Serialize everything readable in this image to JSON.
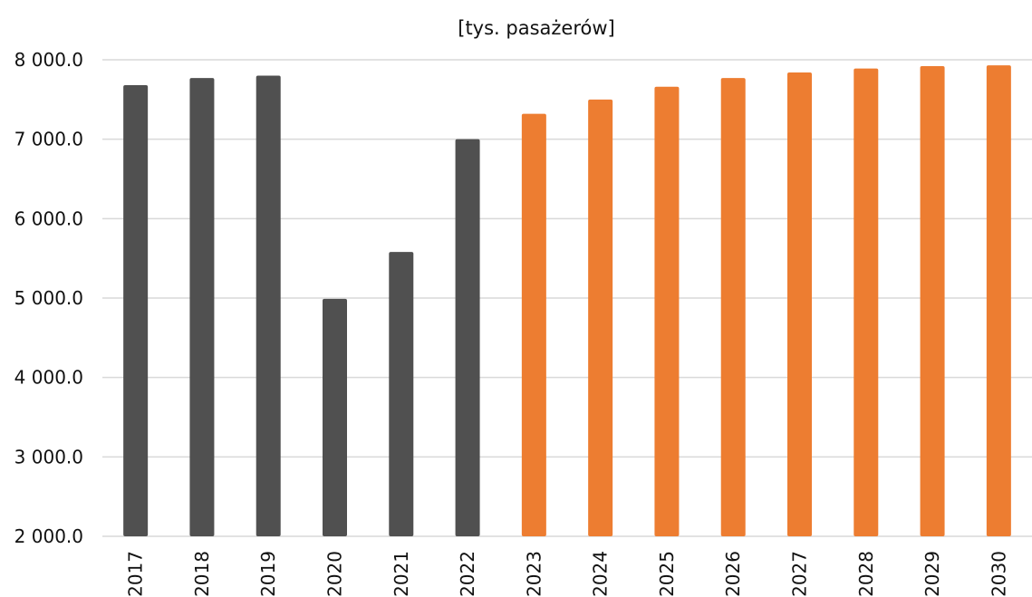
{
  "chart_data": {
    "type": "bar",
    "title": "[tys. pasażerów]",
    "xlabel": "",
    "ylabel": "",
    "ylim": [
      2000,
      8000
    ],
    "y_ticks": [
      8000,
      7000,
      6000,
      5000,
      4000,
      3000,
      2000
    ],
    "y_tick_labels": [
      "8 000.0",
      "7 000.0",
      "6 000.0",
      "5 000.0",
      "4 000.0",
      "3 000.0",
      "2 000.0"
    ],
    "grid": true,
    "legend": "none",
    "categories": [
      "2017",
      "2018",
      "2019",
      "2020",
      "2021",
      "2022",
      "2023",
      "2024",
      "2025",
      "2026",
      "2027",
      "2028",
      "2029",
      "2030"
    ],
    "series": [
      {
        "color": "#505050",
        "values": [
          7680,
          7770,
          7800,
          4990,
          5580,
          7000,
          null,
          null,
          null,
          null,
          null,
          null,
          null,
          null
        ]
      },
      {
        "color": "#ED7D31",
        "values": [
          null,
          null,
          null,
          null,
          null,
          null,
          7320,
          7500,
          7660,
          7770,
          7840,
          7890,
          7920,
          7930
        ]
      }
    ]
  }
}
